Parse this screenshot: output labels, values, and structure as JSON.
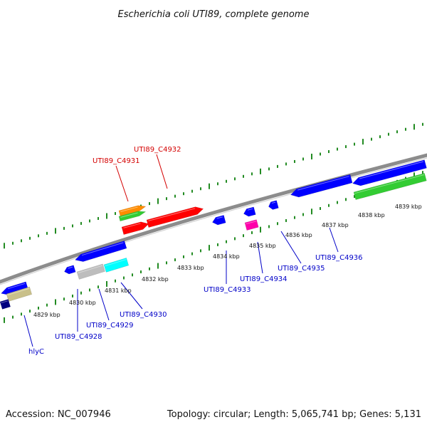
{
  "title": "Escherichia coli UTI89, complete genome",
  "footer": {
    "accession": "Accession: NC_007946",
    "summary": "Topology: circular; Length: 5,065,741 bp; Genes: 5,131"
  },
  "kbp_labels": [
    "4829 kbp",
    "4830 kbp",
    "4831 kbp",
    "4832 kbp",
    "4833 kbp",
    "4834 kbp",
    "4835 kbp",
    "4836 kbp",
    "4837 kbp",
    "4838 kbp",
    "4839 kbp"
  ],
  "gene_labels": [
    {
      "text": "UTI89_C4932",
      "color": "#d40000"
    },
    {
      "text": "UTI89_C4931",
      "color": "#d40000"
    },
    {
      "text": "hlyC",
      "color": "#0000c8"
    },
    {
      "text": "UTI89_C4928",
      "color": "#0000c8"
    },
    {
      "text": "UTI89_C4929",
      "color": "#0000c8"
    },
    {
      "text": "UTI89_C4930",
      "color": "#0000c8"
    },
    {
      "text": "UTI89_C4933",
      "color": "#0000c8"
    },
    {
      "text": "UTI89_C4934",
      "color": "#0000c8"
    },
    {
      "text": "UTI89_C4935",
      "color": "#0000c8"
    },
    {
      "text": "UTI89_C4936",
      "color": "#0000c8"
    }
  ],
  "feature_colors": {
    "cds_forward": "#ff0000",
    "cds_reverse": "#0000ff",
    "alt_orange": "#ff8c00",
    "alt_green": "#33cc33",
    "cyan": "#00ffff",
    "gray": "#bdbdbd",
    "magenta": "#ff00aa",
    "khaki": "#c9c08a",
    "navy": "#000080",
    "backbone": "#8c8c8c",
    "tick_green": "#228b22"
  }
}
